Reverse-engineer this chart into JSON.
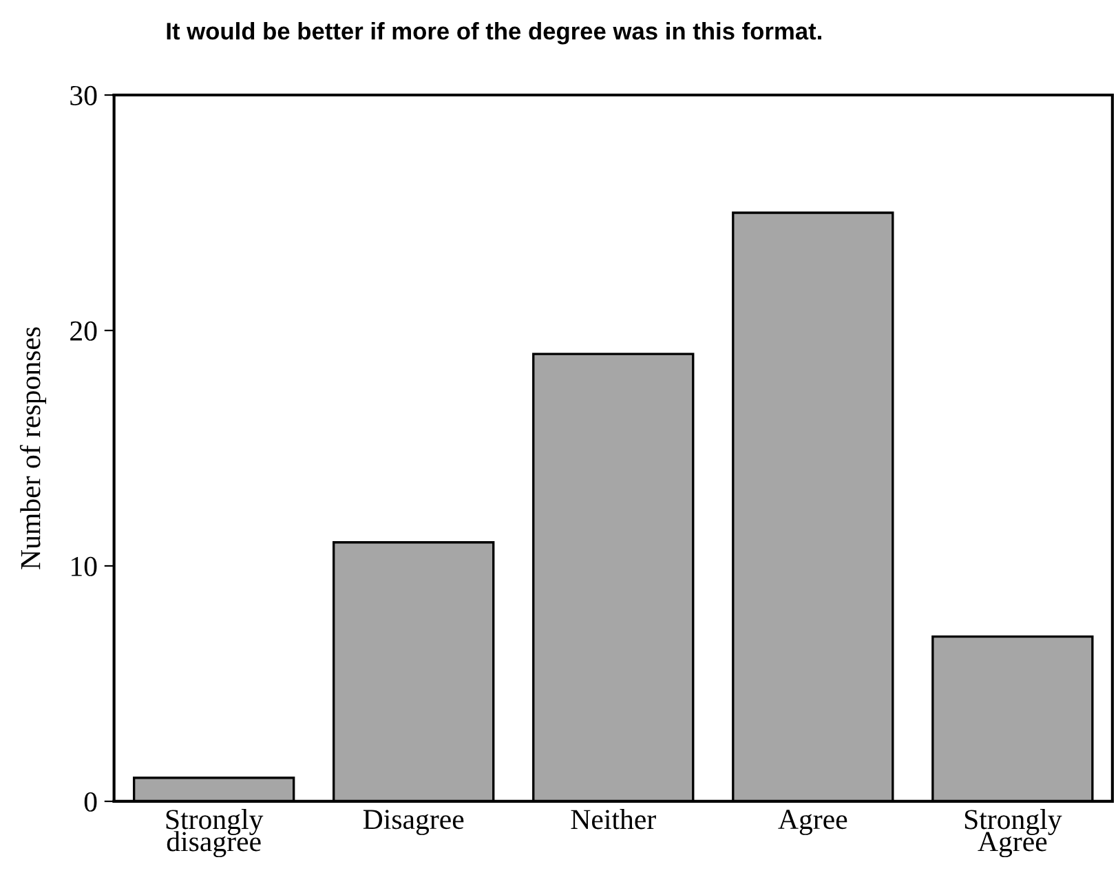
{
  "chart_data": {
    "type": "bar",
    "title": "It would be better if more of the degree was in this format.",
    "categories": [
      "Strongly\ndisagree",
      "Disagree",
      "Neither",
      "Agree",
      "Strongly\nAgree"
    ],
    "values": [
      1,
      11,
      19,
      25,
      7
    ],
    "color": "#a6a6a6",
    "ylabel": "Number of responses",
    "ylim": [
      0,
      30
    ],
    "yticks": [
      0,
      10,
      20,
      30
    ],
    "grid": false
  }
}
